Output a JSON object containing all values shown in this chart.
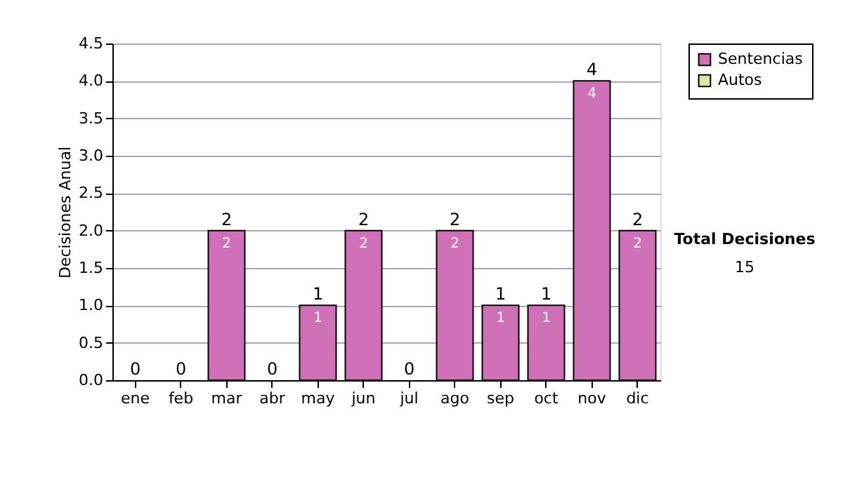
{
  "chart_data": {
    "type": "bar",
    "stacked": true,
    "ylabel": "Decisiones Anual",
    "categories": [
      "ene",
      "feb",
      "mar",
      "abr",
      "may",
      "jun",
      "jul",
      "ago",
      "sep",
      "oct",
      "nov",
      "dic"
    ],
    "series": [
      {
        "name": "Sentencias",
        "color": "#d070b8",
        "values": [
          0,
          0,
          2,
          0,
          1,
          2,
          0,
          2,
          1,
          1,
          4,
          2
        ],
        "value_labels": [
          null,
          null,
          "2",
          null,
          "1",
          "2",
          null,
          "2",
          "1",
          "1",
          "4",
          "2"
        ]
      },
      {
        "name": "Autos",
        "color": "#d8eaa0",
        "values": [
          0,
          0,
          0,
          0,
          0,
          0,
          0,
          0,
          0,
          0,
          0,
          0
        ]
      }
    ],
    "totals": [
      "0",
      "0",
      "2",
      "0",
      "1",
      "2",
      "0",
      "2",
      "1",
      "1",
      "4",
      "2"
    ],
    "ylim": [
      0,
      4.5
    ],
    "yticks": [
      {
        "value": 0,
        "label": "0.0"
      },
      {
        "value": 0.5,
        "label": "0.5"
      },
      {
        "value": 1,
        "label": "1.0"
      },
      {
        "value": 1.5,
        "label": "1.5"
      },
      {
        "value": 2,
        "label": "2.0"
      },
      {
        "value": 2.5,
        "label": "2.5"
      },
      {
        "value": 3,
        "label": "3.0"
      },
      {
        "value": 3.5,
        "label": "3.5"
      },
      {
        "value": 4,
        "label": "4.0"
      },
      {
        "value": 4.5,
        "label": "4.5"
      }
    ],
    "grid": "y",
    "legend": "right",
    "annotations": [
      "Total Decisiones",
      "15"
    ]
  }
}
